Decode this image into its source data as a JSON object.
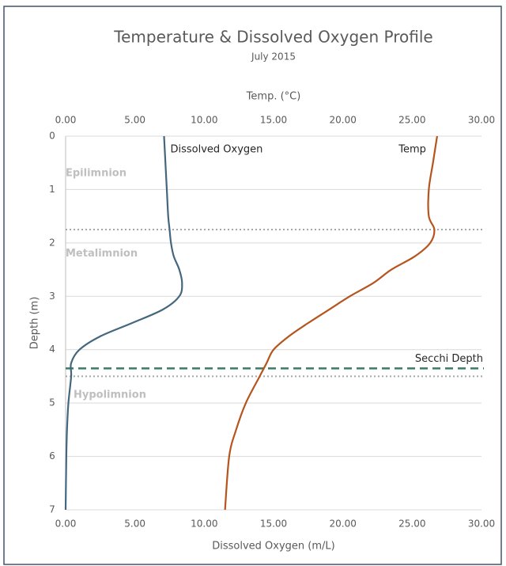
{
  "chart_data": {
    "type": "line",
    "title": "Temperature  & Dissolved Oxygen Profile",
    "subtitle": "July 2015",
    "x_label": "Dissolved Oxygen (m/L)",
    "x2_label": "Temp. (°C)",
    "y_label": "Depth (m)",
    "y": [
      0,
      0.5,
      1,
      1.5,
      1.75,
      2,
      2.25,
      2.5,
      2.75,
      3,
      3.25,
      3.5,
      3.75,
      4,
      4.25,
      4.5,
      5,
      5.5,
      6,
      7
    ],
    "series": [
      {
        "name": "Dissolved Oxygen",
        "color": "#44677e",
        "axis": "x",
        "values": [
          7.1,
          7.2,
          7.3,
          7.4,
          7.5,
          7.6,
          7.8,
          8.2,
          8.4,
          8.2,
          7.0,
          4.8,
          2.5,
          1.0,
          0.4,
          0.4,
          0.2,
          0.1,
          0.05,
          0.0
        ]
      },
      {
        "name": "Temp",
        "color": "#b5541c",
        "axis": "x2",
        "values": [
          26.8,
          26.5,
          26.2,
          26.2,
          26.6,
          26.3,
          25.2,
          23.5,
          22.2,
          20.5,
          19.0,
          17.5,
          16.1,
          15.0,
          14.5,
          14.0,
          13.0,
          12.3,
          11.8,
          11.5
        ]
      }
    ],
    "xlim": [
      0,
      30
    ],
    "xticks": [
      {
        "value": 0,
        "label": "0.00"
      },
      {
        "value": 5,
        "label": "5.00"
      },
      {
        "value": 10,
        "label": "10.00"
      },
      {
        "value": 15,
        "label": "15.00"
      },
      {
        "value": 20,
        "label": "20.00"
      },
      {
        "value": 25,
        "label": "25.00"
      },
      {
        "value": 30,
        "label": "30.00"
      }
    ],
    "x2lim": [
      0,
      30
    ],
    "x2ticks": [
      {
        "value": 0,
        "label": "0.00"
      },
      {
        "value": 5,
        "label": "5.00"
      },
      {
        "value": 10,
        "label": "10.00"
      },
      {
        "value": 15,
        "label": "15.00"
      },
      {
        "value": 20,
        "label": "20.00"
      },
      {
        "value": 25,
        "label": "25.00"
      },
      {
        "value": 30,
        "label": "30.00"
      }
    ],
    "ylim": [
      0,
      7
    ],
    "yticks": [
      0,
      1,
      2,
      3,
      4,
      5,
      6,
      7
    ],
    "y_inverted": true,
    "grid": true,
    "reference_lines": [
      {
        "value": 1.75,
        "style": "dotted",
        "color": "#a6a6a6"
      },
      {
        "value": 4.5,
        "style": "dotted",
        "color": "#a6a6a6"
      },
      {
        "value": 4.35,
        "style": "dashed",
        "color": "#3d7a66",
        "label": "Secchi Depth"
      }
    ],
    "zone_labels": [
      {
        "label": "Epilimnion",
        "depth": 0.7
      },
      {
        "label": "Metalimnion",
        "depth": 2.2
      },
      {
        "label": "Hypolimnion",
        "depth": 4.85
      }
    ]
  }
}
